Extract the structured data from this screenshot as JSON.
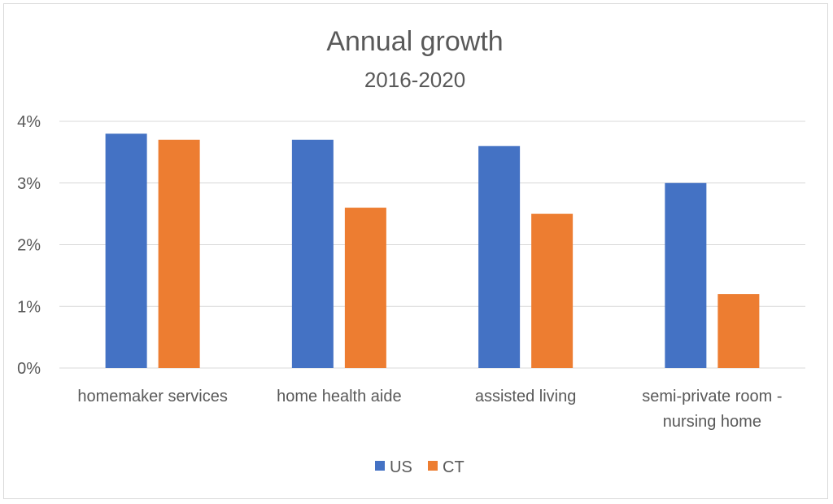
{
  "chart_data": {
    "type": "bar",
    "title": "Annual growth",
    "subtitle": "2016-2020",
    "categories": [
      "homemaker services",
      "home health aide",
      "assisted living",
      "semi-private room - nursing home"
    ],
    "category_lines": [
      [
        "homemaker services"
      ],
      [
        "home health aide"
      ],
      [
        "assisted living"
      ],
      [
        "semi-private room -",
        "nursing home"
      ]
    ],
    "series": [
      {
        "name": "US",
        "color": "#4472c4",
        "values": [
          3.8,
          3.7,
          3.6,
          3.0
        ]
      },
      {
        "name": "CT",
        "color": "#ed7d31",
        "values": [
          3.7,
          2.6,
          2.5,
          1.2
        ]
      }
    ],
    "ylim": [
      0,
      4
    ],
    "yticks": [
      0,
      1,
      2,
      3,
      4
    ],
    "ytick_labels": [
      "0%",
      "1%",
      "2%",
      "3%",
      "4%"
    ],
    "grid": true,
    "legend": "bottom"
  }
}
